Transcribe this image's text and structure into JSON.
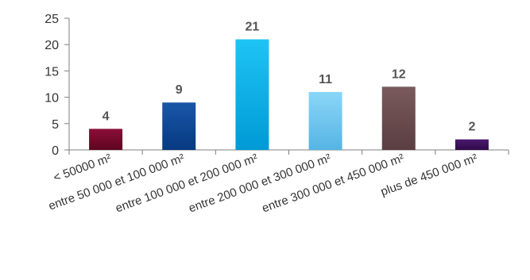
{
  "chart_data": {
    "type": "bar",
    "title": "",
    "xlabel": "",
    "ylabel": "",
    "ylim": [
      0,
      25
    ],
    "yticks": [
      0,
      5,
      10,
      15,
      20,
      25
    ],
    "grid": false,
    "legend": "none",
    "categories": [
      "< 50000 m²",
      "entre 50 000 et 100 000 m²",
      "entre 100 000 et 200 000 m²",
      "entre 200 000 et 300 000 m²",
      "entre 300 000 et 450 000 m²",
      "plus de 450 000 m²"
    ],
    "values": [
      4,
      9,
      21,
      11,
      12,
      2
    ],
    "data_labels": [
      "4",
      "9",
      "21",
      "11",
      "12",
      "2"
    ],
    "bar_colors": [
      [
        "#8a0f38",
        "#5e0420"
      ],
      [
        "#1a56a8",
        "#063a80"
      ],
      [
        "#1ec4f4",
        "#009ad6"
      ],
      [
        "#8ad6f8",
        "#56b4e4"
      ],
      [
        "#7a5a5c",
        "#5a3e42"
      ],
      [
        "#4a1a6e",
        "#2e0848"
      ]
    ],
    "axis_color": "#7f7f7f"
  }
}
